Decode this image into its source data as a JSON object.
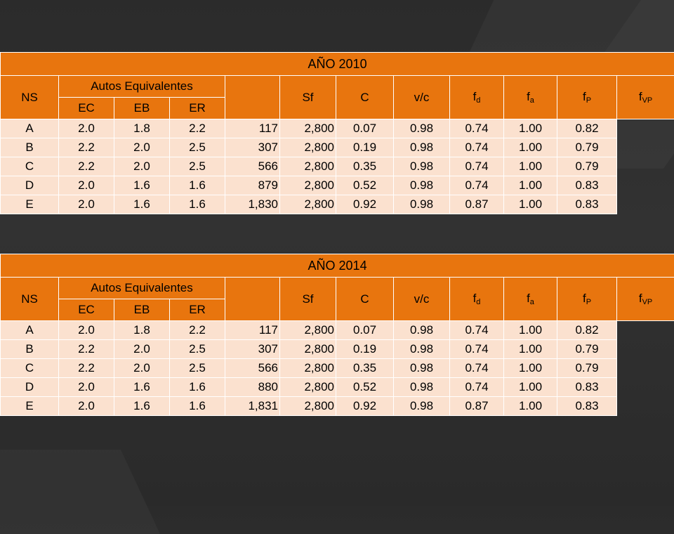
{
  "tables": [
    {
      "title": "AÑO 2010",
      "headers": {
        "ns": "NS",
        "autos": "Autos Equivalentes",
        "ec": "EC",
        "eb": "EB",
        "er": "ER",
        "sf": "Sf",
        "c": "C",
        "vc": "v/c",
        "fd_base": "f",
        "fd_sub": "d",
        "fa_base": "f",
        "fa_sub": "a",
        "fp_base": "f",
        "fp_sub": "P",
        "fvp_base": "f",
        "fvp_sub": "VP"
      },
      "rows": [
        [
          "A",
          "2.0",
          "1.8",
          "2.2",
          "117",
          "2,800",
          "0.07",
          "0.98",
          "0.74",
          "1.00",
          "0.82"
        ],
        [
          "B",
          "2.2",
          "2.0",
          "2.5",
          "307",
          "2,800",
          "0.19",
          "0.98",
          "0.74",
          "1.00",
          "0.79"
        ],
        [
          "C",
          "2.2",
          "2.0",
          "2.5",
          "566",
          "2,800",
          "0.35",
          "0.98",
          "0.74",
          "1.00",
          "0.79"
        ],
        [
          "D",
          "2.0",
          "1.6",
          "1.6",
          "879",
          "2,800",
          "0.52",
          "0.98",
          "0.74",
          "1.00",
          "0.83"
        ],
        [
          "E",
          "2.0",
          "1.6",
          "1.6",
          "1,830",
          "2,800",
          "0.92",
          "0.98",
          "0.87",
          "1.00",
          "0.83"
        ]
      ]
    },
    {
      "title": "AÑO 2014",
      "headers": {
        "ns": "NS",
        "autos": "Autos Equivalentes",
        "ec": "EC",
        "eb": "EB",
        "er": "ER",
        "sf": "Sf",
        "c": "C",
        "vc": "v/c",
        "fd_base": "f",
        "fd_sub": "d",
        "fa_base": "f",
        "fa_sub": "a",
        "fp_base": "f",
        "fp_sub": "P",
        "fvp_base": "f",
        "fvp_sub": "VP"
      },
      "rows": [
        [
          "A",
          "2.0",
          "1.8",
          "2.2",
          "117",
          "2,800",
          "0.07",
          "0.98",
          "0.74",
          "1.00",
          "0.82"
        ],
        [
          "B",
          "2.2",
          "2.0",
          "2.5",
          "307",
          "2,800",
          "0.19",
          "0.98",
          "0.74",
          "1.00",
          "0.79"
        ],
        [
          "C",
          "2.2",
          "2.0",
          "2.5",
          "566",
          "2,800",
          "0.35",
          "0.98",
          "0.74",
          "1.00",
          "0.79"
        ],
        [
          "D",
          "2.0",
          "1.6",
          "1.6",
          "880",
          "2,800",
          "0.52",
          "0.98",
          "0.74",
          "1.00",
          "0.83"
        ],
        [
          "E",
          "2.0",
          "1.6",
          "1.6",
          "1,831",
          "2,800",
          "0.92",
          "0.98",
          "0.87",
          "1.00",
          "0.83"
        ]
      ]
    }
  ]
}
